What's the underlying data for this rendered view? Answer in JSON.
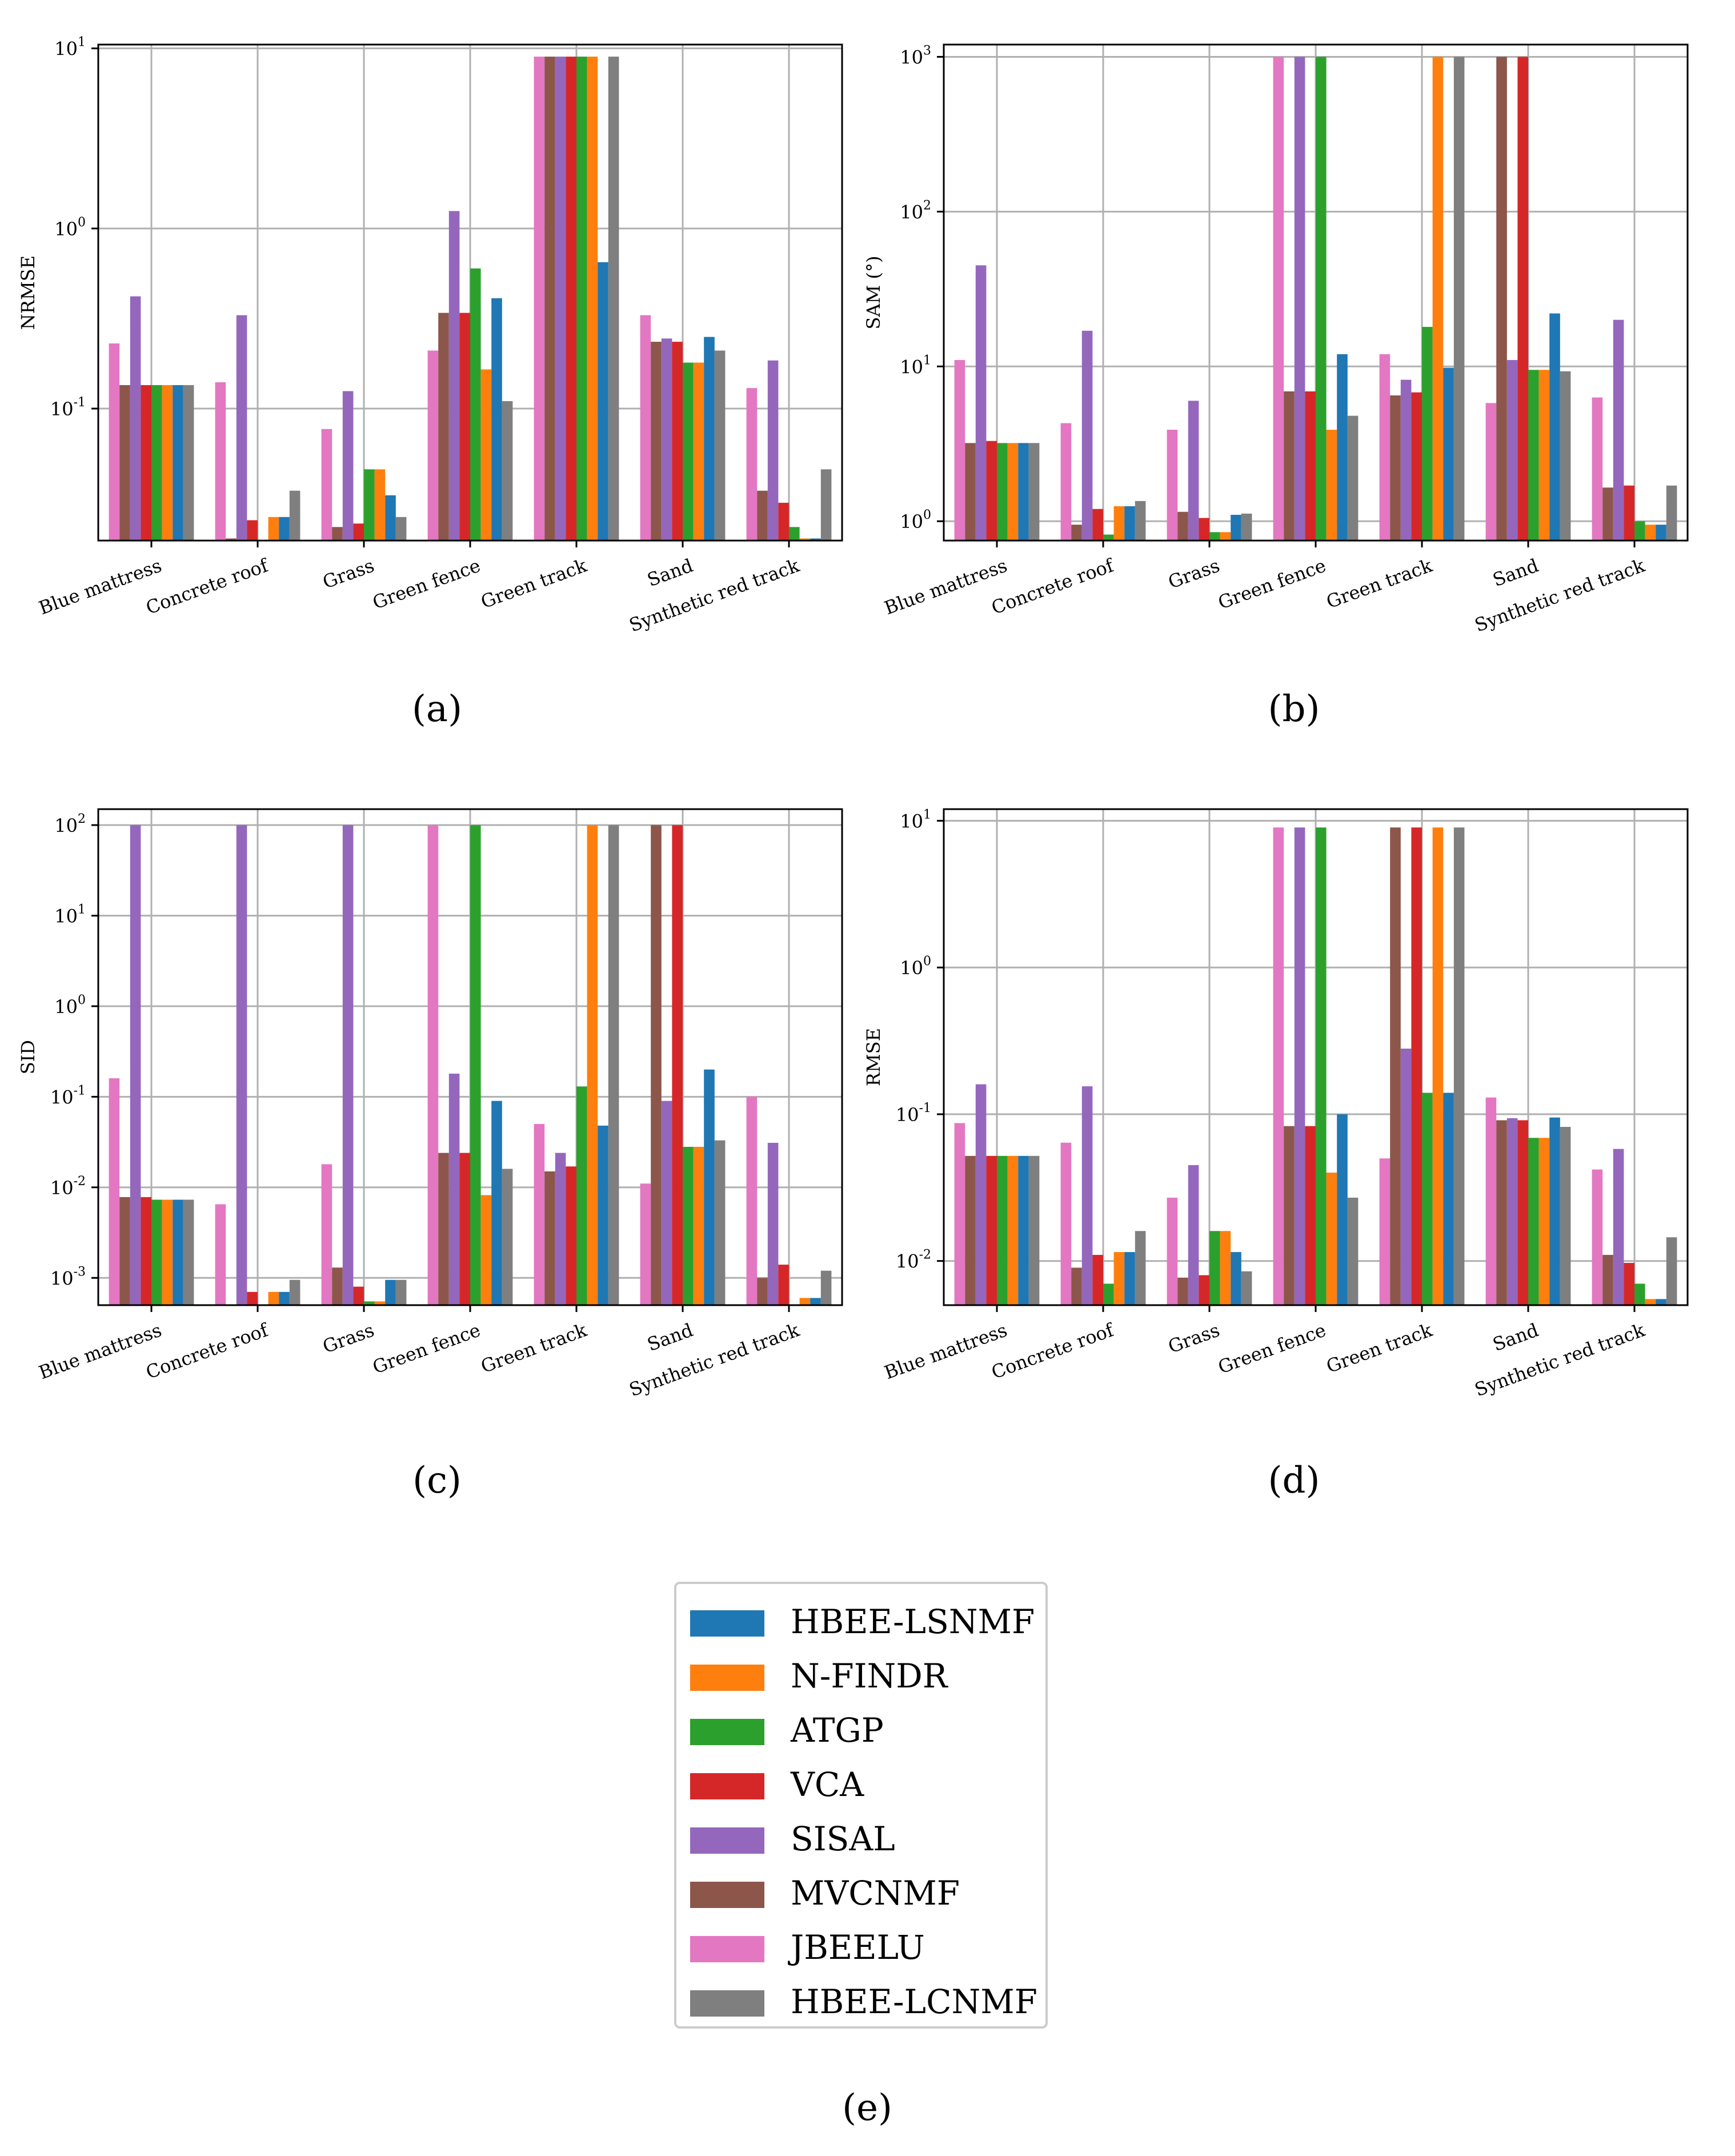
{
  "figure": {
    "panel_labels": {
      "a": "(a)",
      "b": "(b)",
      "c": "(c)",
      "d": "(d)",
      "e": "(e)"
    }
  },
  "legend": {
    "entries": [
      {
        "name": "HBEE-LSNMF",
        "color": "#1f77b4"
      },
      {
        "name": "N-FINDR",
        "color": "#ff7f0e"
      },
      {
        "name": "ATGP",
        "color": "#2ca02c"
      },
      {
        "name": "VCA",
        "color": "#d62728"
      },
      {
        "name": "SISAL",
        "color": "#9467bd"
      },
      {
        "name": "MVCNMF",
        "color": "#8c564b"
      },
      {
        "name": "JBEELU",
        "color": "#e377c2"
      },
      {
        "name": "HBEE-LCNMF",
        "color": "#7f7f7f"
      }
    ]
  },
  "chart_data": [
    {
      "id": "a",
      "type": "bar",
      "yscale": "log",
      "ylabel": "NRMSE",
      "xlabel": "",
      "ylim": [
        0.0185,
        10.5
      ],
      "yticks": [
        {
          "exp": "-1",
          "value": 0.1
        },
        {
          "exp": "0",
          "value": 1
        },
        {
          "exp": "1",
          "value": 10
        }
      ],
      "categories": [
        "Blue mattress",
        "Concrete roof",
        "Grass",
        "Green fence",
        "Green track",
        "Sand",
        "Synthetic red track"
      ],
      "series_order": [
        "JBEELU",
        "MVCNMF",
        "SISAL",
        "VCA",
        "ATGP",
        "N-FINDR",
        "HBEE-LSNMF",
        "HBEE-LCNMF"
      ],
      "series": [
        {
          "name": "JBEELU",
          "values": [
            0.23,
            0.14,
            0.077,
            0.21,
            9.0,
            0.33,
            0.13
          ]
        },
        {
          "name": "MVCNMF",
          "values": [
            0.135,
            0.019,
            0.022,
            0.34,
            9.0,
            0.235,
            0.035
          ]
        },
        {
          "name": "SISAL",
          "values": [
            0.42,
            0.33,
            0.125,
            1.25,
            9.0,
            0.245,
            0.185
          ]
        },
        {
          "name": "VCA",
          "values": [
            0.135,
            0.024,
            0.023,
            0.34,
            9.0,
            0.235,
            0.03
          ]
        },
        {
          "name": "ATGP",
          "values": [
            0.135,
            0.0185,
            0.046,
            0.6,
            9.0,
            0.18,
            0.022
          ]
        },
        {
          "name": "N-FINDR",
          "values": [
            0.135,
            0.025,
            0.046,
            0.165,
            9.0,
            0.18,
            0.019
          ]
        },
        {
          "name": "HBEE-LSNMF",
          "values": [
            0.135,
            0.025,
            0.033,
            0.41,
            0.65,
            0.25,
            0.019
          ]
        },
        {
          "name": "HBEE-LCNMF",
          "values": [
            0.135,
            0.035,
            0.025,
            0.11,
            9.0,
            0.21,
            0.046
          ]
        }
      ]
    },
    {
      "id": "b",
      "type": "bar",
      "yscale": "log",
      "ylabel": "SAM (°)",
      "xlabel": "",
      "ylim": [
        0.75,
        1200
      ],
      "yticks": [
        {
          "exp": "0",
          "value": 1
        },
        {
          "exp": "1",
          "value": 10
        },
        {
          "exp": "2",
          "value": 100
        },
        {
          "exp": "3",
          "value": 1000
        }
      ],
      "categories": [
        "Blue mattress",
        "Concrete roof",
        "Grass",
        "Green fence",
        "Green track",
        "Sand",
        "Synthetic red track"
      ],
      "series_order": [
        "JBEELU",
        "MVCNMF",
        "SISAL",
        "VCA",
        "ATGP",
        "N-FINDR",
        "HBEE-LSNMF",
        "HBEE-LCNMF"
      ],
      "series": [
        {
          "name": "JBEELU",
          "values": [
            11.0,
            4.3,
            3.9,
            1000,
            12.0,
            5.8,
            6.3
          ]
        },
        {
          "name": "MVCNMF",
          "values": [
            3.2,
            0.95,
            1.15,
            6.9,
            6.5,
            1000,
            1.65
          ]
        },
        {
          "name": "SISAL",
          "values": [
            45.0,
            17.0,
            6.0,
            1000,
            8.2,
            11.0,
            20.0
          ]
        },
        {
          "name": "VCA",
          "values": [
            3.3,
            1.2,
            1.05,
            6.9,
            6.8,
            1000,
            1.7
          ]
        },
        {
          "name": "ATGP",
          "values": [
            3.2,
            0.82,
            0.85,
            1000,
            18.0,
            9.5,
            1.0
          ]
        },
        {
          "name": "N-FINDR",
          "values": [
            3.2,
            1.25,
            0.85,
            3.9,
            1000,
            9.5,
            0.95
          ]
        },
        {
          "name": "HBEE-LSNMF",
          "values": [
            3.2,
            1.25,
            1.1,
            12.0,
            9.8,
            22.0,
            0.95
          ]
        },
        {
          "name": "HBEE-LCNMF",
          "values": [
            3.2,
            1.35,
            1.12,
            4.8,
            1000,
            9.3,
            1.7
          ]
        }
      ]
    },
    {
      "id": "c",
      "type": "bar",
      "yscale": "log",
      "ylabel": "SID",
      "xlabel": "",
      "ylim": [
        0.0005,
        150
      ],
      "yticks": [
        {
          "exp": "-3",
          "value": 0.001
        },
        {
          "exp": "-2",
          "value": 0.01
        },
        {
          "exp": "-1",
          "value": 0.1
        },
        {
          "exp": "0",
          "value": 1
        },
        {
          "exp": "1",
          "value": 10
        },
        {
          "exp": "2",
          "value": 100
        }
      ],
      "categories": [
        "Blue mattress",
        "Concrete roof",
        "Grass",
        "Green fence",
        "Green track",
        "Sand",
        "Synthetic red track"
      ],
      "series_order": [
        "JBEELU",
        "MVCNMF",
        "SISAL",
        "VCA",
        "ATGP",
        "N-FINDR",
        "HBEE-LSNMF",
        "HBEE-LCNMF"
      ],
      "series": [
        {
          "name": "JBEELU",
          "values": [
            0.16,
            0.0065,
            0.018,
            100,
            0.05,
            0.011,
            0.1
          ]
        },
        {
          "name": "MVCNMF",
          "values": [
            0.0078,
            0.0005,
            0.0013,
            0.024,
            0.015,
            100,
            0.001
          ]
        },
        {
          "name": "SISAL",
          "values": [
            100,
            100,
            100,
            0.18,
            0.024,
            0.09,
            0.031
          ]
        },
        {
          "name": "VCA",
          "values": [
            0.0078,
            0.0007,
            0.0008,
            0.024,
            0.017,
            100,
            0.0014
          ]
        },
        {
          "name": "ATGP",
          "values": [
            0.0073,
            0.0005,
            0.00055,
            100,
            0.13,
            0.028,
            0.0005
          ]
        },
        {
          "name": "N-FINDR",
          "values": [
            0.0073,
            0.0007,
            0.00055,
            0.0082,
            100,
            0.028,
            0.0006
          ]
        },
        {
          "name": "HBEE-LSNMF",
          "values": [
            0.0073,
            0.0007,
            0.00095,
            0.09,
            0.048,
            0.2,
            0.0006
          ]
        },
        {
          "name": "HBEE-LCNMF",
          "values": [
            0.0073,
            0.00095,
            0.00095,
            0.016,
            100,
            0.033,
            0.0012
          ]
        }
      ]
    },
    {
      "id": "d",
      "type": "bar",
      "yscale": "log",
      "ylabel": "RMSE",
      "xlabel": "",
      "ylim": [
        0.005,
        12
      ],
      "yticks": [
        {
          "exp": "-2",
          "value": 0.01
        },
        {
          "exp": "-1",
          "value": 0.1
        },
        {
          "exp": "0",
          "value": 1
        },
        {
          "exp": "1",
          "value": 10
        }
      ],
      "categories": [
        "Blue mattress",
        "Concrete roof",
        "Grass",
        "Green fence",
        "Green track",
        "Sand",
        "Synthetic red track"
      ],
      "series_order": [
        "JBEELU",
        "MVCNMF",
        "SISAL",
        "VCA",
        "ATGP",
        "N-FINDR",
        "HBEE-LSNMF",
        "HBEE-LCNMF"
      ],
      "series": [
        {
          "name": "JBEELU",
          "values": [
            0.087,
            0.064,
            0.027,
            9.0,
            0.05,
            0.13,
            0.042
          ]
        },
        {
          "name": "MVCNMF",
          "values": [
            0.052,
            0.009,
            0.0077,
            0.083,
            9.0,
            0.091,
            0.011
          ]
        },
        {
          "name": "SISAL",
          "values": [
            0.16,
            0.155,
            0.045,
            9.0,
            0.28,
            0.094,
            0.058
          ]
        },
        {
          "name": "VCA",
          "values": [
            0.052,
            0.011,
            0.008,
            0.083,
            9.0,
            0.091,
            0.0097
          ]
        },
        {
          "name": "ATGP",
          "values": [
            0.052,
            0.007,
            0.016,
            9.0,
            0.14,
            0.069,
            0.007
          ]
        },
        {
          "name": "N-FINDR",
          "values": [
            0.052,
            0.0115,
            0.016,
            0.04,
            9.0,
            0.069,
            0.0055
          ]
        },
        {
          "name": "HBEE-LSNMF",
          "values": [
            0.052,
            0.0115,
            0.0115,
            0.1,
            0.14,
            0.095,
            0.0055
          ]
        },
        {
          "name": "HBEE-LCNMF",
          "values": [
            0.052,
            0.016,
            0.0085,
            0.027,
            9.0,
            0.082,
            0.0145
          ]
        }
      ]
    }
  ]
}
